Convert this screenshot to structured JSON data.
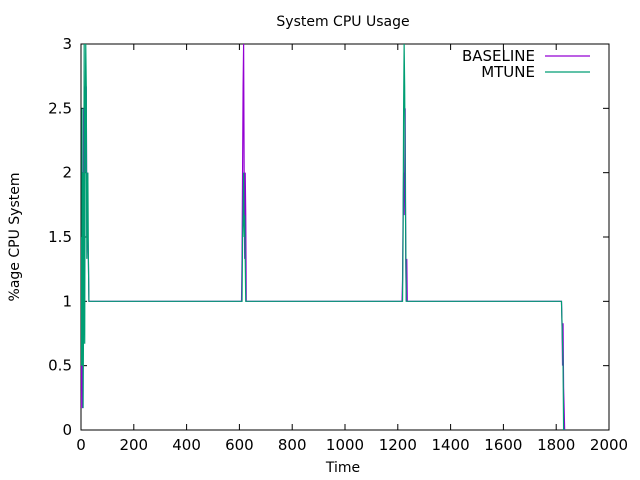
{
  "chart_data": {
    "type": "line",
    "title": "System CPU Usage",
    "xlabel": "Time",
    "ylabel": "%age CPU System",
    "xlim": [
      0,
      2000
    ],
    "ylim": [
      0,
      3
    ],
    "x_ticks": [
      0,
      200,
      400,
      600,
      800,
      1000,
      1200,
      1400,
      1600,
      1800,
      2000
    ],
    "y_ticks": [
      0,
      0.5,
      1,
      1.5,
      2,
      2.5,
      3
    ],
    "x_tick_labels": [
      "0",
      "200",
      "400",
      "600",
      "800",
      "1000",
      "1200",
      "1400",
      "1600",
      "1800",
      "2000"
    ],
    "y_tick_labels": [
      "0",
      "0.5",
      "1",
      "1.5",
      "2",
      "2.5",
      "3"
    ],
    "grid": false,
    "legend_position": "top-right",
    "series": [
      {
        "name": "BASELINE",
        "color": "#9400d3",
        "x": [
          0,
          1,
          2,
          3,
          4,
          5,
          6,
          7,
          8,
          10,
          12,
          14,
          16,
          18,
          20,
          22,
          24,
          26,
          28,
          30,
          32,
          34,
          608,
          610,
          612,
          614,
          616,
          618,
          620,
          622,
          624,
          626,
          628,
          630,
          632,
          1216,
          1218,
          1220,
          1222,
          1224,
          1226,
          1228,
          1230,
          1232,
          1234,
          1236,
          1238,
          1240,
          1242,
          1820,
          1822,
          1824,
          1826,
          1828,
          1830,
          1832,
          1834
        ],
        "y": [
          0.83,
          0.17,
          0.83,
          0.5,
          1.0,
          0.83,
          0.17,
          0.83,
          1.5,
          2.5,
          2.0,
          2.67,
          2.5,
          2.0,
          2.67,
          1.5,
          2.0,
          1.5,
          1.33,
          1.0,
          1.0,
          1.0,
          1.0,
          1.33,
          2.0,
          2.67,
          3.0,
          2.0,
          1.33,
          2.0,
          1.67,
          1.0,
          1.0,
          1.0,
          1.0,
          1.0,
          1.17,
          1.67,
          2.0,
          1.67,
          2.0,
          2.5,
          1.33,
          1.0,
          1.33,
          1.0,
          1.0,
          1.0,
          1.0,
          1.0,
          0.83,
          0.5,
          0.83,
          0.33,
          0.17,
          0.0,
          0.0
        ]
      },
      {
        "name": "MTUNE",
        "color": "#009e73",
        "x": [
          0,
          1,
          2,
          3,
          4,
          5,
          6,
          7,
          8,
          10,
          12,
          14,
          16,
          18,
          20,
          22,
          24,
          26,
          28,
          30,
          32,
          34,
          608,
          610,
          612,
          614,
          616,
          618,
          620,
          622,
          624,
          626,
          628,
          630,
          632,
          1216,
          1218,
          1220,
          1222,
          1224,
          1226,
          1228,
          1230,
          1232,
          1234,
          1236,
          1238,
          1240,
          1242,
          1820,
          1822,
          1824,
          1826,
          1828,
          1830,
          1832,
          1834
        ],
        "y": [
          1.0,
          1.5,
          0.5,
          1.0,
          2.5,
          0.5,
          1.5,
          2.0,
          0.17,
          1.0,
          3.0,
          0.67,
          2.33,
          3.0,
          2.67,
          1.33,
          1.67,
          2.0,
          1.33,
          1.0,
          1.0,
          1.0,
          1.0,
          1.0,
          1.5,
          1.67,
          2.0,
          1.5,
          1.67,
          1.33,
          1.0,
          1.0,
          1.0,
          1.0,
          1.0,
          1.0,
          1.0,
          1.5,
          2.5,
          3.0,
          2.67,
          2.0,
          1.5,
          1.0,
          1.0,
          1.0,
          1.0,
          1.0,
          1.0,
          1.0,
          0.83,
          0.67,
          0.5,
          0.0,
          0.0,
          0.0,
          0.0
        ]
      }
    ]
  }
}
